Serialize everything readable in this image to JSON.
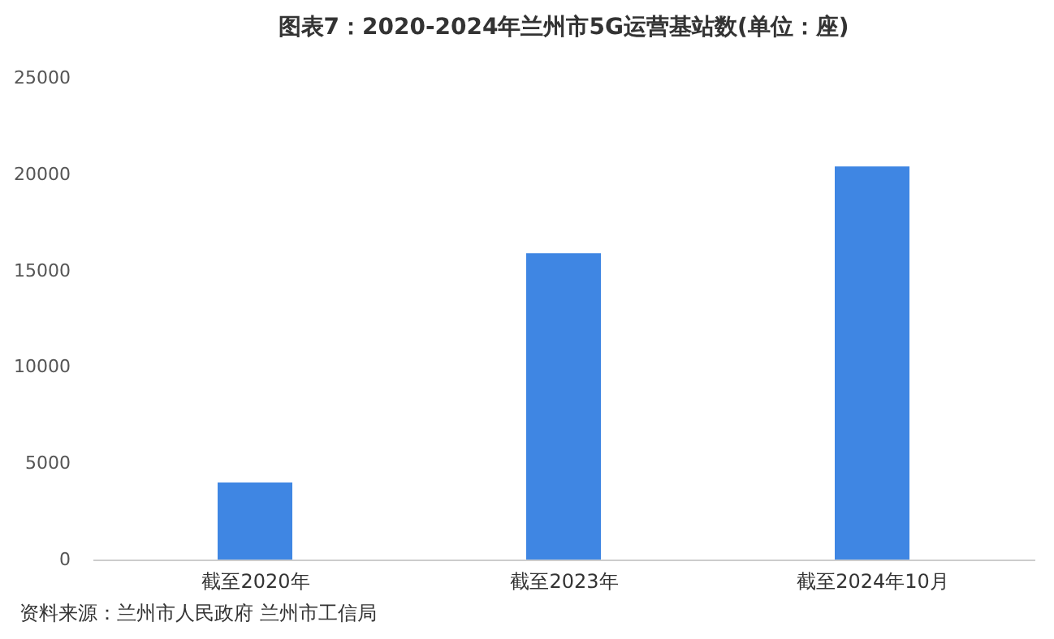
{
  "chart_data": {
    "type": "bar",
    "title": "图表7：2020-2024年兰州市5G运营基站数(单位：座)",
    "categories": [
      "截至2020年",
      "截至2023年",
      "截至2024年10月"
    ],
    "values": [
      4000,
      15900,
      20400
    ],
    "color": "#3f86e3",
    "ylim": [
      0,
      25000
    ],
    "yticks": [
      0,
      5000,
      10000,
      15000,
      20000,
      25000
    ],
    "grid": false,
    "annotations": [
      "资料来源：兰州市人民政府 兰州市工信局"
    ]
  }
}
